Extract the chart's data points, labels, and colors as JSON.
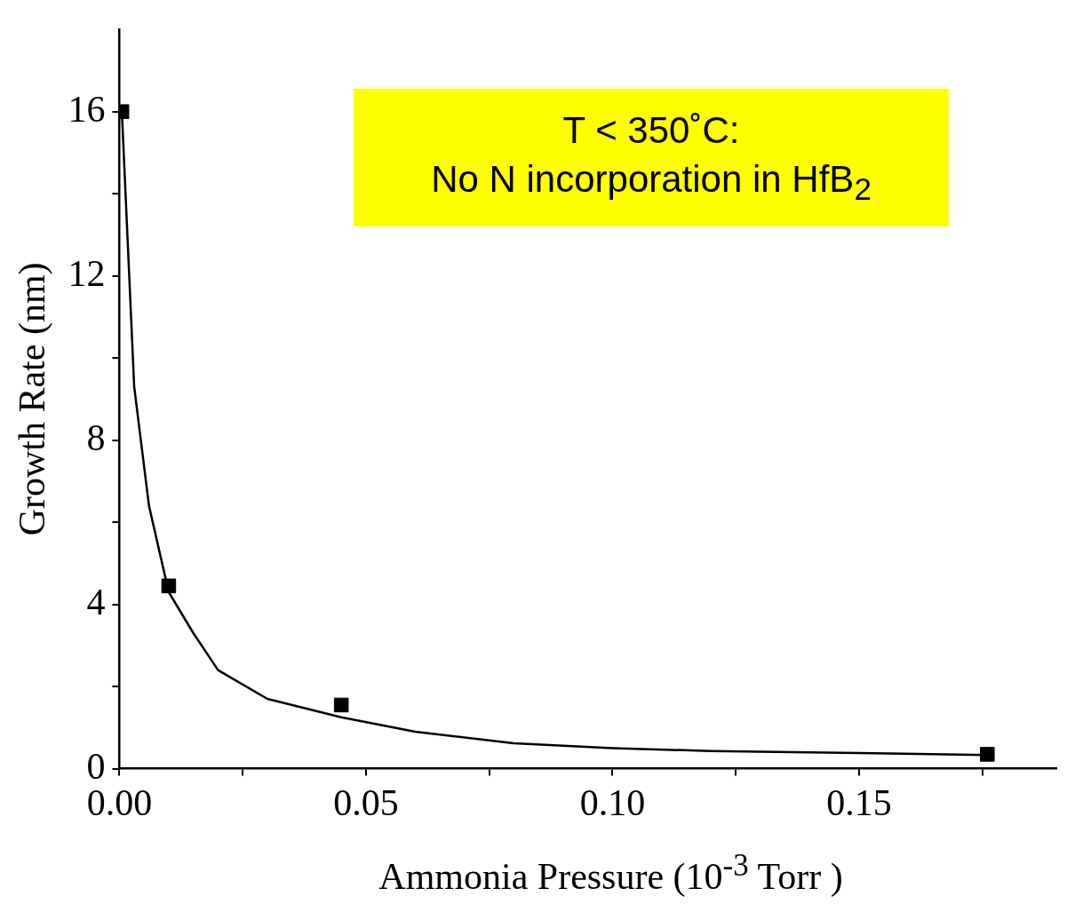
{
  "chart_data": {
    "type": "scatter",
    "xlabel": "Ammonia Pressure (10$^{-3}$ Torr )",
    "ylabel": "Growth Rate (nm)",
    "annotations": [
      "T < 350˚C:\nNo N incorporation in HfB$_{2}$"
    ],
    "xlim": [
      0,
      0.19
    ],
    "ylim": [
      0,
      18
    ],
    "xticks": [
      {
        "value": 0,
        "label": "0.00"
      },
      {
        "value": 0.025,
        "label": null
      },
      {
        "value": 0.05,
        "label": "0.05"
      },
      {
        "value": 0.075,
        "label": null
      },
      {
        "value": 0.1,
        "label": "0.10"
      },
      {
        "value": 0.125,
        "label": null
      },
      {
        "value": 0.15,
        "label": "0.15"
      },
      {
        "value": 0.175,
        "label": null
      }
    ],
    "yticks": [
      0,
      {
        "value": 2,
        "label": null
      },
      4,
      {
        "value": 6,
        "label": null
      },
      8,
      {
        "value": 10,
        "label": null
      },
      12,
      {
        "value": 14,
        "label": null
      },
      16
    ],
    "legend": false,
    "series": [
      {
        "type": "scatter",
        "marker": "square",
        "color": "#000000",
        "x": [
          0.0005,
          0.01,
          0.045,
          0.176
        ],
        "values": [
          16,
          4.45,
          1.55,
          0.35
        ]
      },
      {
        "type": "line",
        "marker": "none",
        "line_style": "solid",
        "color": "#000000",
        "x": [
          0.0005,
          0.003,
          0.006,
          0.01,
          0.015,
          0.02,
          0.03,
          0.045,
          0.06,
          0.08,
          0.1,
          0.12,
          0.15,
          0.176
        ],
        "values": [
          16,
          9.3,
          6.4,
          4.3,
          3.3,
          2.4,
          1.7,
          1.25,
          0.9,
          0.62,
          0.5,
          0.43,
          0.38,
          0.33
        ]
      }
    ]
  }
}
